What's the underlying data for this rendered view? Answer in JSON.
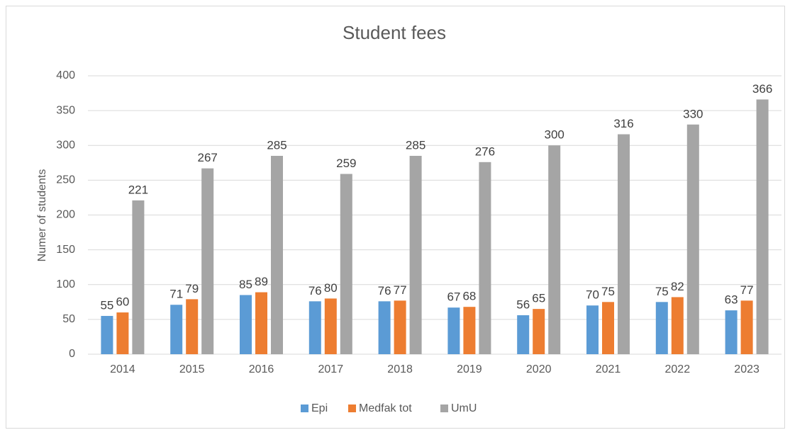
{
  "chart_data": {
    "type": "bar",
    "title": "Student fees",
    "y_label": "Numer of students",
    "categories": [
      "2014",
      "2015",
      "2016",
      "2017",
      "2018",
      "2019",
      "2020",
      "2021",
      "2022",
      "2023"
    ],
    "series": [
      {
        "name": "Epi",
        "color": "#5b9bd5",
        "values": [
          55,
          71,
          85,
          76,
          76,
          67,
          56,
          70,
          75,
          63
        ]
      },
      {
        "name": "Medfak tot",
        "color": "#ed7d31",
        "values": [
          60,
          79,
          89,
          80,
          77,
          68,
          65,
          75,
          82,
          77
        ]
      },
      {
        "name": "UmU",
        "color": "#a5a5a5",
        "values": [
          221,
          267,
          285,
          259,
          285,
          276,
          300,
          316,
          330,
          366
        ]
      }
    ],
    "ylim": [
      0,
      400
    ],
    "yticks": [
      0,
      50,
      100,
      150,
      200,
      250,
      300,
      350,
      400
    ],
    "grid": true,
    "legend": "bottom"
  }
}
